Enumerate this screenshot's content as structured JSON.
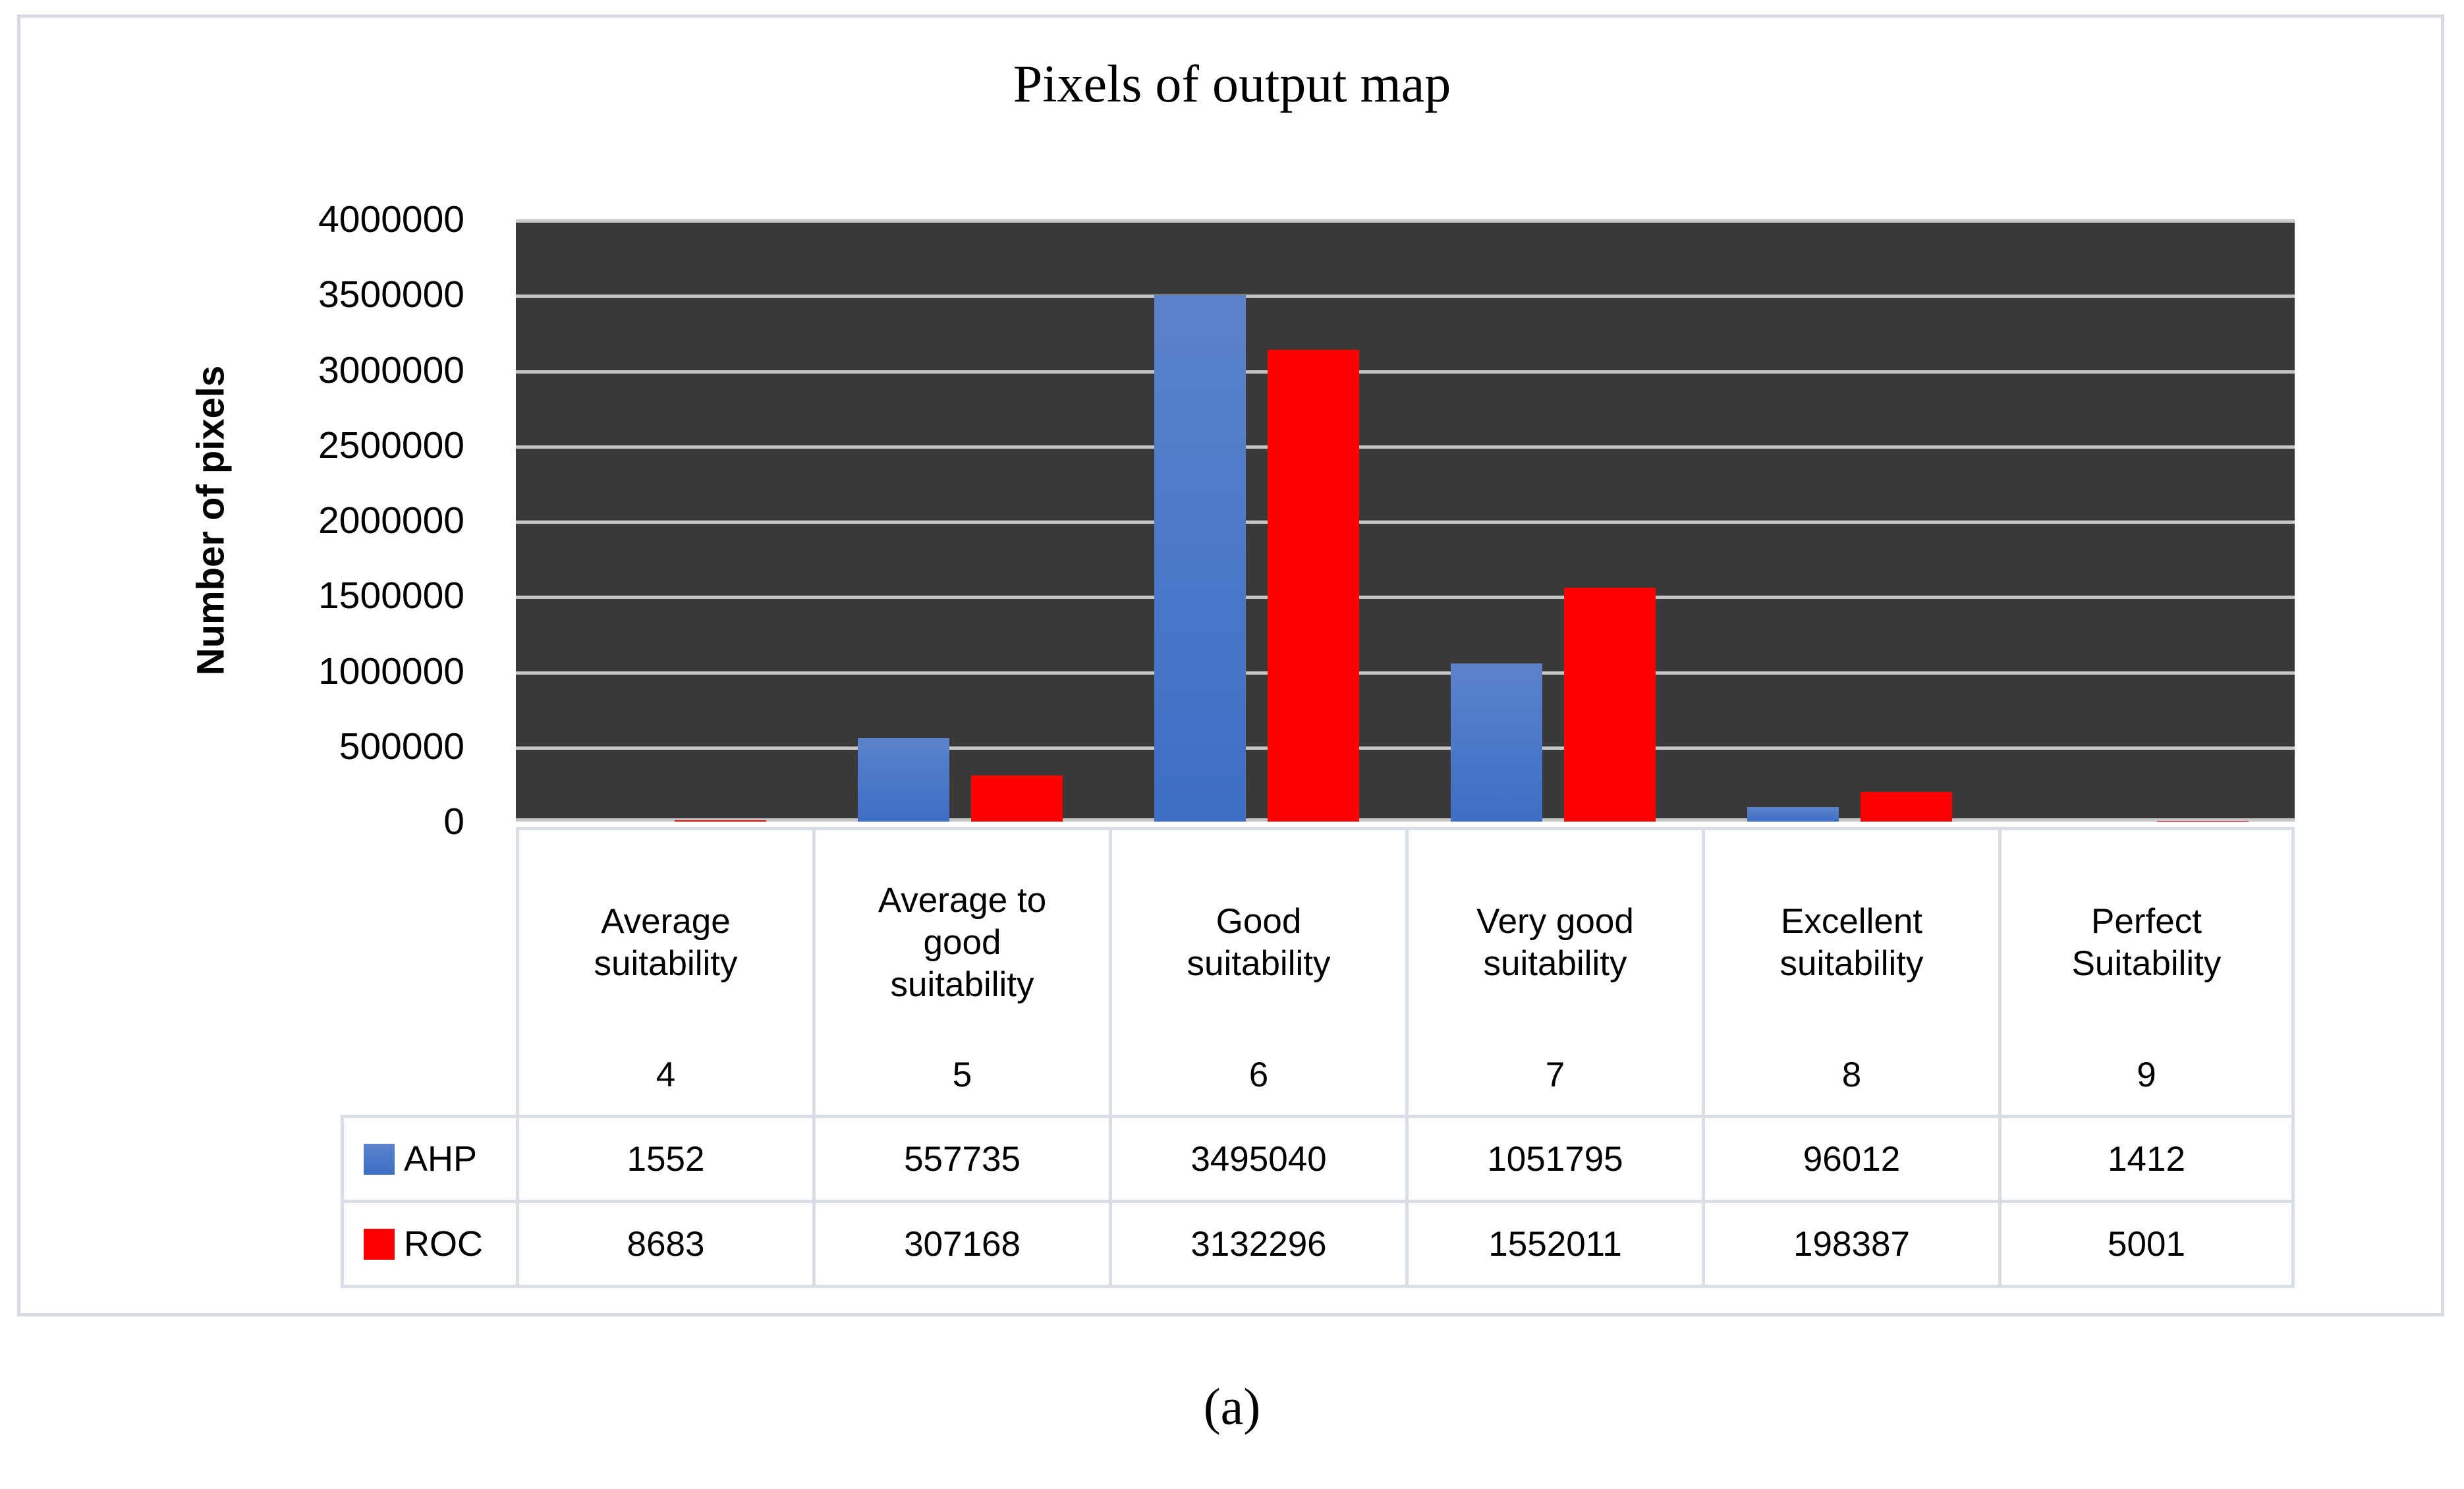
{
  "caption": "(a)",
  "colors": {
    "panel_border": "#d8dce2",
    "table_border": "#d9dee6",
    "plot_background": "#3b3838",
    "gridline": "#c6c5c3",
    "ahp_blue_top": "#5b83cb",
    "ahp_blue_bottom": "#3e6ec5",
    "roc_red": "#ff0000"
  },
  "chart_data": {
    "type": "bar",
    "title": "Pixels of output map",
    "xlabel": "",
    "ylabel": "Number of pixels",
    "ylim": [
      0,
      4000000
    ],
    "ytick_step": 500000,
    "yticks": [
      "4000000",
      "3500000",
      "3000000",
      "2500000",
      "2000000",
      "1500000",
      "1000000",
      "500000",
      "0"
    ],
    "grid": true,
    "legend_position": "table-left",
    "plot_bg": "#3b3838",
    "gridline_color": "#c6c5c3",
    "categories": [
      {
        "label": "Average suitability",
        "code": "4"
      },
      {
        "label": "Average to good suitability",
        "code": "5"
      },
      {
        "label": "Good suitability",
        "code": "6"
      },
      {
        "label": "Very good suitability",
        "code": "7"
      },
      {
        "label": "Excellent suitability",
        "code": "8"
      },
      {
        "label": "Perfect Suitability",
        "code": "9"
      }
    ],
    "series": [
      {
        "name": "AHP",
        "fill": {
          "type": "gradient",
          "top": "#5b83cb",
          "bottom": "#3e6ec5"
        },
        "values": [
          1552,
          557735,
          3495040,
          1051795,
          96012,
          1412
        ]
      },
      {
        "name": "ROC",
        "fill": {
          "type": "solid",
          "color": "#ff0000"
        },
        "values": [
          8683,
          307168,
          3132296,
          1552011,
          198387,
          5001
        ]
      }
    ]
  }
}
